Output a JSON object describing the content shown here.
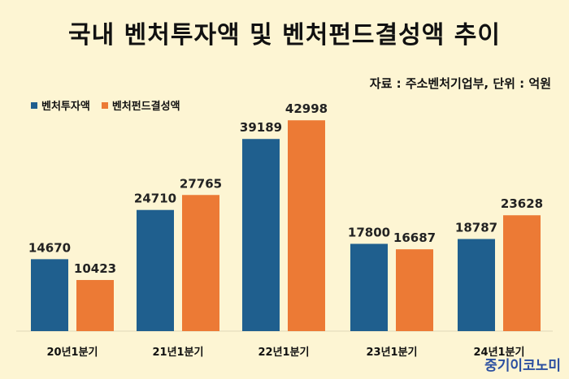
{
  "chart_data": {
    "type": "bar",
    "title": "국내 벤처투자액 및 벤처펀드결성액 추이",
    "source_note": "자료 : 주소벤처기업부, 단위 : 억원",
    "categories": [
      "20년1분기",
      "21년1분기",
      "22년1분기",
      "23년1분기",
      "24년1분기"
    ],
    "series": [
      {
        "name": "벤처투자액",
        "color": "#1f5f8e",
        "values": [
          14670,
          24710,
          39189,
          17800,
          18787
        ]
      },
      {
        "name": "벤처펀드결성액",
        "color": "#ec7a35",
        "values": [
          10423,
          27765,
          42998,
          16687,
          23628
        ]
      }
    ],
    "ylim": [
      0,
      48000
    ],
    "grid": false,
    "legend_position": "top-left"
  },
  "brand": "중기이코노미"
}
